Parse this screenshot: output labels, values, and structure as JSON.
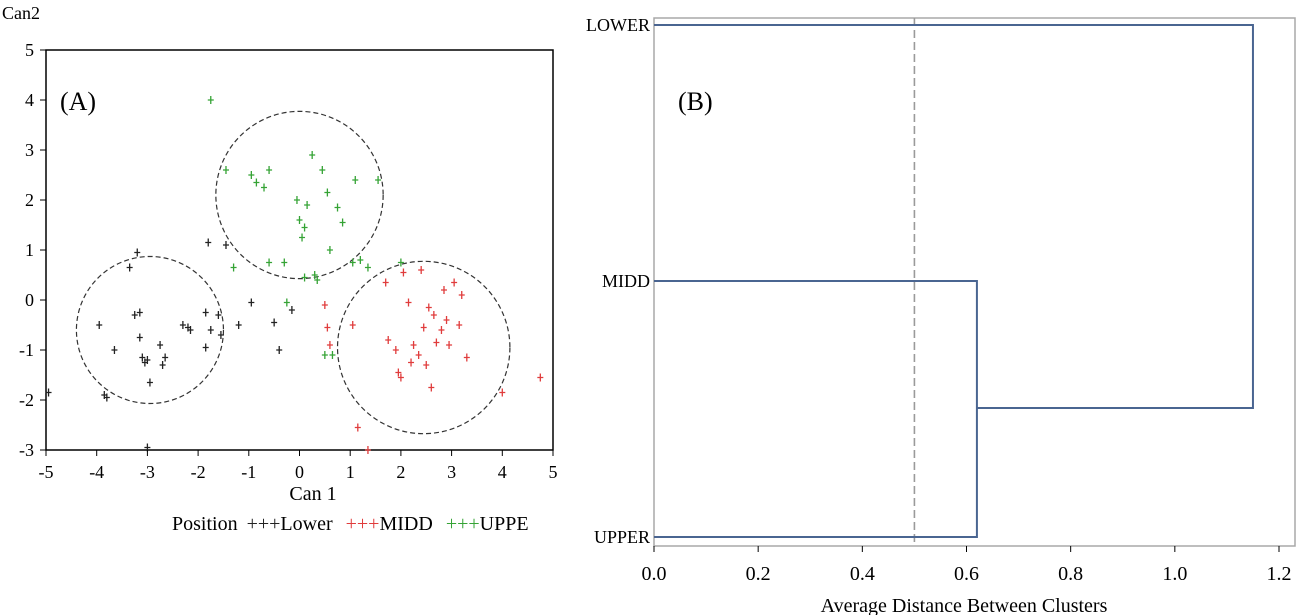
{
  "chart_data": [
    {
      "type": "scatter",
      "panel_label": "(A)",
      "xlabel": "Can 1",
      "ylabel": "Can2",
      "xlim": [
        -5,
        5
      ],
      "ylim": [
        -3,
        5
      ],
      "xticks": [
        -5,
        -4,
        -3,
        -2,
        -1,
        0,
        1,
        2,
        3,
        4,
        5
      ],
      "yticks": [
        -3,
        -2,
        -1,
        0,
        1,
        2,
        3,
        4,
        5
      ],
      "legend": {
        "title": "Position",
        "placement": "bottom",
        "entries": [
          {
            "symbol": "+++",
            "label": "Lower",
            "color": "#222222"
          },
          {
            "symbol": "+++",
            "label": "MIDD",
            "color": "#e03c3c"
          },
          {
            "symbol": "+++",
            "label": "UPPE",
            "color": "#35a335"
          }
        ]
      },
      "series": [
        {
          "name": "Lower",
          "color": "#222222",
          "points": [
            [
              -4.95,
              -1.85
            ],
            [
              -3.95,
              -0.5
            ],
            [
              -3.85,
              -1.9
            ],
            [
              -3.8,
              -1.95
            ],
            [
              -3.65,
              -1.0
            ],
            [
              -3.35,
              0.65
            ],
            [
              -3.25,
              -0.3
            ],
            [
              -3.2,
              0.95
            ],
            [
              -3.15,
              -0.25
            ],
            [
              -3.15,
              -0.75
            ],
            [
              -3.1,
              -1.15
            ],
            [
              -3.05,
              -1.25
            ],
            [
              -3.0,
              -1.2
            ],
            [
              -2.95,
              -1.65
            ],
            [
              -2.75,
              -0.9
            ],
            [
              -2.7,
              -1.3
            ],
            [
              -2.65,
              -1.15
            ],
            [
              -2.3,
              -0.5
            ],
            [
              -2.2,
              -0.55
            ],
            [
              -2.15,
              -0.6
            ],
            [
              -1.85,
              -0.25
            ],
            [
              -1.85,
              -0.95
            ],
            [
              -1.75,
              -0.6
            ],
            [
              -1.6,
              -0.3
            ],
            [
              -1.55,
              -0.7
            ],
            [
              -1.2,
              -0.5
            ],
            [
              -0.95,
              -0.05
            ],
            [
              -0.5,
              -0.45
            ],
            [
              -0.4,
              -1.0
            ],
            [
              -0.15,
              -0.2
            ],
            [
              -3.0,
              -2.95
            ],
            [
              -1.8,
              1.15
            ],
            [
              -1.45,
              1.1
            ]
          ]
        },
        {
          "name": "MIDD",
          "color": "#e03c3c",
          "points": [
            [
              0.5,
              -0.1
            ],
            [
              0.55,
              -0.55
            ],
            [
              0.6,
              -0.9
            ],
            [
              1.05,
              -0.5
            ],
            [
              1.15,
              -2.55
            ],
            [
              1.35,
              -3.0
            ],
            [
              1.7,
              0.35
            ],
            [
              1.75,
              -0.8
            ],
            [
              1.9,
              -1.0
            ],
            [
              1.95,
              -1.45
            ],
            [
              2.0,
              -1.55
            ],
            [
              2.05,
              0.55
            ],
            [
              2.15,
              -0.05
            ],
            [
              2.2,
              -1.25
            ],
            [
              2.25,
              -0.9
            ],
            [
              2.35,
              -1.1
            ],
            [
              2.4,
              0.6
            ],
            [
              2.45,
              -0.55
            ],
            [
              2.5,
              -1.3
            ],
            [
              2.55,
              -0.15
            ],
            [
              2.6,
              -1.75
            ],
            [
              2.65,
              -0.3
            ],
            [
              2.7,
              -0.85
            ],
            [
              2.8,
              -0.6
            ],
            [
              2.85,
              0.2
            ],
            [
              2.9,
              -0.4
            ],
            [
              2.95,
              -0.9
            ],
            [
              3.05,
              0.35
            ],
            [
              3.15,
              -0.5
            ],
            [
              3.2,
              0.1
            ],
            [
              3.3,
              -1.15
            ],
            [
              4.0,
              -1.85
            ],
            [
              4.75,
              -1.55
            ]
          ]
        },
        {
          "name": "UPPE",
          "color": "#35a335",
          "points": [
            [
              -1.75,
              4.0
            ],
            [
              -1.45,
              2.6
            ],
            [
              -1.3,
              0.65
            ],
            [
              -0.95,
              2.5
            ],
            [
              -0.85,
              2.35
            ],
            [
              -0.7,
              2.25
            ],
            [
              -0.6,
              2.6
            ],
            [
              -0.6,
              0.75
            ],
            [
              -0.3,
              0.75
            ],
            [
              -0.05,
              2.0
            ],
            [
              0.0,
              1.6
            ],
            [
              0.05,
              1.25
            ],
            [
              0.1,
              1.45
            ],
            [
              0.15,
              1.9
            ],
            [
              0.25,
              2.9
            ],
            [
              0.3,
              0.5
            ],
            [
              0.35,
              0.4
            ],
            [
              0.45,
              2.6
            ],
            [
              0.55,
              2.15
            ],
            [
              0.6,
              1.0
            ],
            [
              0.75,
              1.85
            ],
            [
              0.85,
              1.55
            ],
            [
              1.05,
              0.75
            ],
            [
              1.1,
              2.4
            ],
            [
              1.2,
              0.8
            ],
            [
              1.35,
              0.65
            ],
            [
              1.55,
              2.4
            ],
            [
              2.0,
              0.75
            ],
            [
              0.5,
              -1.1
            ],
            [
              0.65,
              -1.1
            ],
            [
              0.1,
              0.45
            ],
            [
              -0.25,
              -0.05
            ]
          ]
        }
      ],
      "annotations": [
        {
          "shape": "dashed-circle",
          "center": [
            -2.95,
            -0.6
          ],
          "radius_x_units": 1.45
        },
        {
          "shape": "dashed-circle",
          "center": [
            0.0,
            2.1
          ],
          "radius_x_units": 1.65
        },
        {
          "shape": "dashed-circle",
          "center": [
            2.45,
            -0.95
          ],
          "radius_x_units": 1.7
        }
      ]
    },
    {
      "type": "dendrogram",
      "panel_label": "(B)",
      "xlabel": "Average Distance Between Clusters",
      "xlim": [
        0.0,
        1.2
      ],
      "xticks": [
        "0.0",
        "0.2",
        "0.4",
        "0.6",
        "0.8",
        "1.0",
        "1.2"
      ],
      "leaves": [
        "LOWER",
        "MIDD",
        "UPPER"
      ],
      "merges": [
        {
          "left": "MIDD",
          "right": "UPPER",
          "height": 0.62
        },
        {
          "left": "LOWER",
          "right": "MIDD+UPPER",
          "height": 1.15
        }
      ],
      "cutoff_line": 0.5,
      "line_color": "#4a6591"
    }
  ]
}
